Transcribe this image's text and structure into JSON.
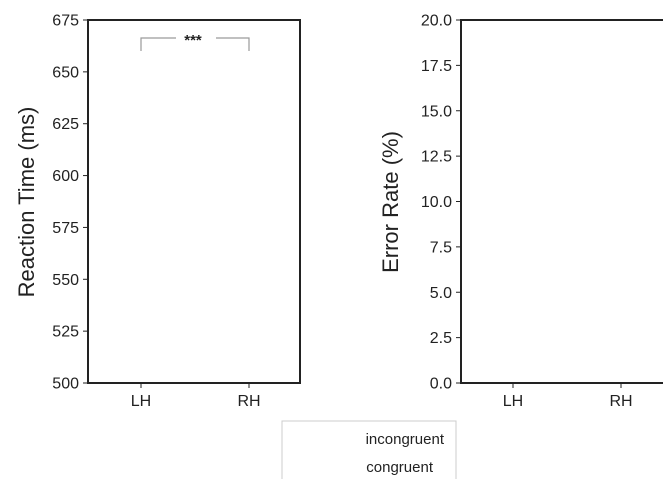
{
  "chart_data": [
    {
      "type": "bar",
      "ylabel": "Reaction Time (ms)",
      "categories": [
        "LH",
        "RH"
      ],
      "ylim": [
        500,
        675
      ],
      "yticks": [
        500,
        525,
        550,
        575,
        600,
        625,
        650,
        675
      ],
      "ytick_labels": [
        "500",
        "525",
        "550",
        "575",
        "600",
        "625",
        "650",
        "675"
      ],
      "series": [
        {
          "name": "incongruent",
          "values": [
            null,
            null
          ]
        },
        {
          "name": "congruent",
          "values": [
            null,
            null
          ]
        }
      ],
      "annotations": [
        {
          "text": "***",
          "between": [
            "LH",
            "RH"
          ]
        }
      ],
      "grid": false
    },
    {
      "type": "bar",
      "ylabel": "Error Rate (%)",
      "categories": [
        "LH",
        "RH"
      ],
      "ylim": [
        0,
        20
      ],
      "yticks": [
        0,
        2.5,
        5,
        7.5,
        10,
        12.5,
        15,
        17.5,
        20
      ],
      "ytick_labels": [
        "0.0",
        "2.5",
        "5.0",
        "7.5",
        "10.0",
        "12.5",
        "15.0",
        "17.5",
        "20.0"
      ],
      "series": [
        {
          "name": "incongruent",
          "values": [
            null,
            null
          ]
        },
        {
          "name": "congruent",
          "values": [
            null,
            null
          ]
        }
      ],
      "grid": false
    }
  ],
  "legend": {
    "placement": "bottom-center",
    "entries": [
      "incongruent",
      "congruent"
    ]
  },
  "colors": {
    "axis": "#222222",
    "bracket": "#9a9a9a",
    "legend_border": "#cccccc"
  }
}
